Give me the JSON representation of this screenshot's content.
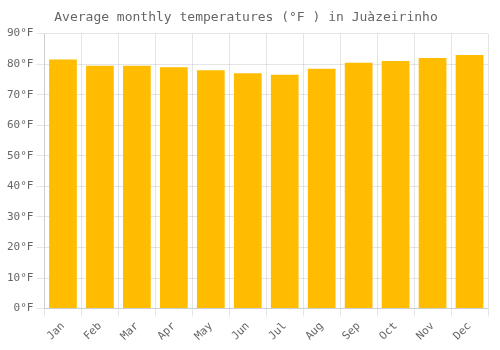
{
  "chart_data": {
    "type": "bar",
    "title": "Average monthly temperatures (°F ) in Juàzeirinho",
    "categories": [
      "Jan",
      "Feb",
      "Mar",
      "Apr",
      "May",
      "Jun",
      "Jul",
      "Aug",
      "Sep",
      "Oct",
      "Nov",
      "Dec"
    ],
    "values": [
      81.5,
      79.5,
      79.5,
      79.0,
      78.0,
      77.0,
      76.5,
      78.5,
      80.5,
      81.0,
      82.0,
      83.0
    ],
    "color": "#FFBC00",
    "ylim": [
      0,
      90
    ],
    "yticks": [
      {
        "value": 0,
        "label": "0°F"
      },
      {
        "value": 10,
        "label": "10°F"
      },
      {
        "value": 20,
        "label": "20°F"
      },
      {
        "value": 30,
        "label": "30°F"
      },
      {
        "value": 40,
        "label": "40°F"
      },
      {
        "value": 50,
        "label": "50°F"
      },
      {
        "value": 60,
        "label": "60°F"
      },
      {
        "value": 70,
        "label": "70°F"
      },
      {
        "value": 80,
        "label": "80°F"
      },
      {
        "value": 90,
        "label": "90°F"
      }
    ],
    "grid": true
  }
}
